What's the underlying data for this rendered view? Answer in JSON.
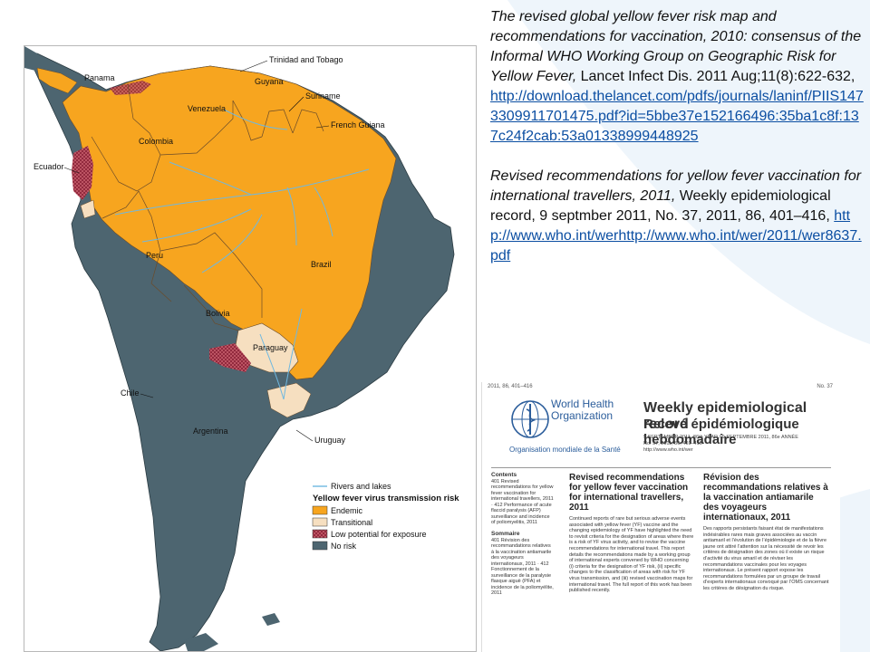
{
  "references": {
    "ref1": {
      "italic_text": "The revised global yellow fever risk map and recommendations for vaccination, 2010: consensus of the Informal WHO Working Group on Geographic Risk for Yellow Fever,",
      "plain_text": "Lancet Infect Dis. 2011 Aug;11(8):622-632,",
      "link": "http://download.thelancet.com/pdfs/journals/laninf/PIIS1473309911701475.pdf?id=5bbe37e152166496:35ba1c8f:137c24f2cab:53a01338999448925"
    },
    "ref2": {
      "italic_text": "Revised recommendations for yellow fever vaccination for international travellers, 2011,",
      "plain_text": "Weekly epidemiological record, 9 septmber 2011, No. 37, 2011, 86, 401–416,",
      "link": "http://www.who.int/werhttp://www.who.int/wer/2011/wer8637.pdf"
    }
  },
  "map": {
    "countries": {
      "trinidad": "Trinidad and Tobago",
      "panama": "Panama",
      "guyana": "Guyana",
      "venezuela": "Venezuela",
      "suriname": "Suriname",
      "french_guiana": "French Guiana",
      "colombia": "Colombia",
      "ecuador": "Ecuador",
      "peru": "Peru",
      "brazil": "Brazil",
      "bolivia": "Bolivia",
      "paraguay": "Paraguay",
      "chile": "Chile",
      "argentina": "Argentina",
      "uruguay": "Uruguay"
    },
    "legend": {
      "rivers": "Rivers and lakes",
      "title": "Yellow fever virus transmission risk",
      "endemic": "Endemic",
      "transitional": "Transitional",
      "low": "Low potential for exposure",
      "no_risk": "No risk"
    },
    "colors": {
      "endemic": "#f7a51f",
      "transitional": "#f6dfc0",
      "low": "#b5475a",
      "no_risk": "#4d6570",
      "river": "#6fb8e0",
      "ocean": "#ffffff"
    }
  },
  "wer": {
    "header_left": "2011, 86, 401–416",
    "header_right": "No. 37",
    "org_name_line1": "World Health",
    "org_name_line2": "Organization",
    "org_name_fr": "Organisation mondiale de la Santé",
    "title_en": "Weekly epidemiological record",
    "title_fr": "Relevé épidémiologique hebdomadaire",
    "issue_line1": "9 SEPTEMBER 2011, 86th YEAR / 9 SEPTEMBRE 2011, 86e ANNÉE",
    "issue_line2": "No. 37, 2011, 86, 401–416",
    "issue_line3": "http://www.who.int/wer",
    "contents_title": "Contents",
    "contents_body": "401 Revised recommendations for yellow fever vaccination for international travellers, 2011 · 412 Performance of acute flaccid paralysis (AFP) surveillance and incidence of poliomyelitis, 2011",
    "sommaire_title": "Sommaire",
    "sommaire_body": "401 Révision des recommandations relatives à la vaccination antiamarile des voyageurs internationaux, 2011 · 412 Fonctionnement de la surveillance de la paralysie flasque aiguë (PFA) et incidence de la poliomyélite, 2011",
    "article_title_en": "Revised recommendations for yellow fever vaccination for international travellers, 2011",
    "article_body_en": "Continued reports of rare but serious adverse events associated with yellow fever (YF) vaccine and the changing epidemiology of YF have highlighted the need to revisit criteria for the designation of areas where there is a risk of YF virus activity, and to revise the vaccine recommendations for international travel. This report details the recommendations made by a working group of international experts convened by WHO concerning (i) criteria for the designation of YF risk, (ii) specific changes to the classification of areas with risk for YF virus transmission, and (iii) revised vaccination maps for international travel. The full report of this work has been published recently.",
    "article_title_fr": "Révision des recommandations relatives à la vaccination antiamarile des voyageurs internationaux, 2011",
    "article_body_fr": "Des rapports persistants faisant état de manifestations indésirables rares mais graves associées au vaccin antiamaril et l’évolution de l’épidémiologie et de la fièvre jaune ont attiré l’attention sur la nécessité de revoir les critères de désignation des zones où il existe un risque d’activité du virus amaril et de réviser les recommandations vaccinales pour les voyages internationaux. Le présent rapport expose les recommandations formulées par un groupe de travail d’experts internationaux convoqué par l’OMS concernant les critères de désignation du risque."
  }
}
